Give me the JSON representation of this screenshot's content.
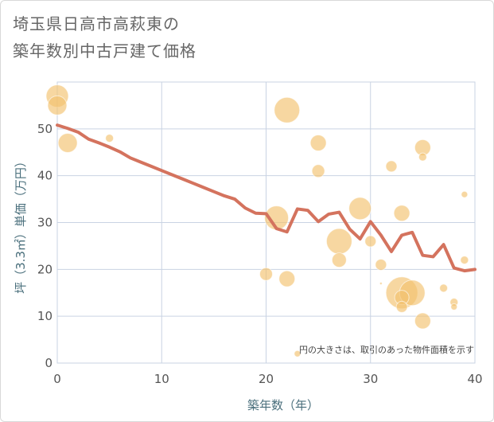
{
  "title": {
    "line1": "埼玉県日高市高萩東の",
    "line2": "築年数別中古戸建て価格"
  },
  "colors": {
    "line": "#d4735e",
    "bubble": "#f3c16e",
    "grid": "#c9d3e3",
    "axis_label": "#4a6f7c"
  },
  "chart_data": {
    "type": "scatter",
    "xlabel": "築年数（年）",
    "ylabel": "坪（3.3㎡）単価（万円）",
    "xlim": [
      0,
      40
    ],
    "ylim": [
      0,
      60
    ],
    "xticks": [
      0,
      10,
      20,
      30,
      40
    ],
    "yticks": [
      0,
      10,
      20,
      30,
      40,
      50
    ],
    "grid": true,
    "note": "円の大きさは、取引のあった物件面積を示す",
    "line": {
      "x": [
        0,
        1,
        2,
        3,
        4,
        5,
        6,
        7,
        8,
        9,
        10,
        11,
        12,
        13,
        14,
        15,
        16,
        17,
        18,
        19,
        20,
        21,
        22,
        23,
        24,
        25,
        26,
        27,
        28,
        29,
        30,
        31,
        32,
        33,
        34,
        35,
        36,
        37,
        38,
        39,
        40
      ],
      "y": [
        50.8,
        50.1,
        49.3,
        47.8,
        47.0,
        46.1,
        45.1,
        43.8,
        42.9,
        42.0,
        41.1,
        40.2,
        39.3,
        38.4,
        37.5,
        36.6,
        35.7,
        35.0,
        33.1,
        32.0,
        31.9,
        28.7,
        28.0,
        32.9,
        32.6,
        30.2,
        31.8,
        32.2,
        28.6,
        26.5,
        30.2,
        27.3,
        23.8,
        27.3,
        27.9,
        23.0,
        22.7,
        25.3,
        20.3,
        19.7,
        20.0
      ]
    },
    "bubbles": [
      {
        "x": 0,
        "y": 57,
        "size": 14
      },
      {
        "x": 0,
        "y": 55,
        "size": 12
      },
      {
        "x": 1,
        "y": 47,
        "size": 12
      },
      {
        "x": 5,
        "y": 48,
        "size": 5
      },
      {
        "x": 22,
        "y": 54,
        "size": 16
      },
      {
        "x": 21,
        "y": 31,
        "size": 15
      },
      {
        "x": 25,
        "y": 47,
        "size": 10
      },
      {
        "x": 25,
        "y": 41,
        "size": 8
      },
      {
        "x": 29,
        "y": 33,
        "size": 14
      },
      {
        "x": 27,
        "y": 26,
        "size": 16
      },
      {
        "x": 27,
        "y": 22,
        "size": 9
      },
      {
        "x": 30,
        "y": 26,
        "size": 7
      },
      {
        "x": 31,
        "y": 21,
        "size": 7
      },
      {
        "x": 31,
        "y": 17,
        "size": 1.5
      },
      {
        "x": 20,
        "y": 19,
        "size": 8
      },
      {
        "x": 22,
        "y": 18,
        "size": 10
      },
      {
        "x": 23,
        "y": 2,
        "size": 4
      },
      {
        "x": 32,
        "y": 42,
        "size": 7
      },
      {
        "x": 33,
        "y": 32,
        "size": 10
      },
      {
        "x": 35,
        "y": 46,
        "size": 10
      },
      {
        "x": 35,
        "y": 44,
        "size": 5
      },
      {
        "x": 33,
        "y": 15,
        "size": 20
      },
      {
        "x": 34,
        "y": 15,
        "size": 16
      },
      {
        "x": 33,
        "y": 14,
        "size": 9
      },
      {
        "x": 33,
        "y": 12,
        "size": 7
      },
      {
        "x": 35,
        "y": 9,
        "size": 10
      },
      {
        "x": 37,
        "y": 16,
        "size": 5
      },
      {
        "x": 39,
        "y": 36,
        "size": 4
      },
      {
        "x": 39,
        "y": 22,
        "size": 5
      },
      {
        "x": 38,
        "y": 13,
        "size": 5
      },
      {
        "x": 38,
        "y": 12,
        "size": 4
      }
    ]
  }
}
